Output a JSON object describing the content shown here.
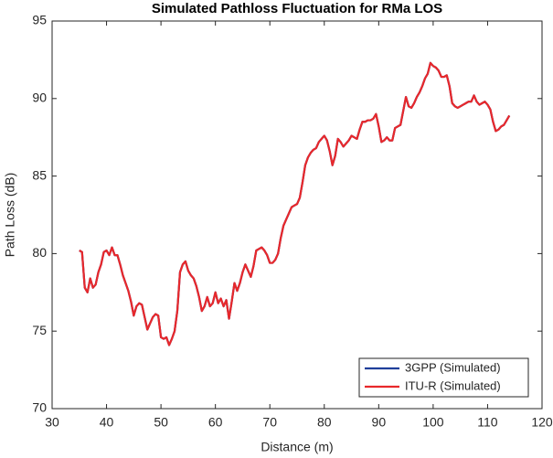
{
  "chart_data": {
    "type": "line",
    "title": "Simulated Pathloss Fluctuation for RMa LOS",
    "x_label": "Distance (m)",
    "y_label": "Path Loss (dB)",
    "xlim": [
      30,
      120
    ],
    "xticks": [
      30,
      40,
      50,
      60,
      70,
      80,
      90,
      100,
      110,
      120
    ],
    "ylim": [
      70,
      95
    ],
    "yticks": [
      70,
      75,
      80,
      85,
      90,
      95
    ],
    "legend": "lower right",
    "grid": false,
    "x": [
      35,
      35.5,
      36,
      36.5,
      37,
      37.5,
      38,
      38.5,
      39,
      39.5,
      40,
      40.5,
      41,
      41.5,
      42,
      42.5,
      43,
      44,
      44.5,
      45,
      45.5,
      46,
      46.5,
      47,
      47.5,
      48,
      48.5,
      49,
      49.5,
      50,
      50.5,
      51,
      51.5,
      52,
      52.5,
      53,
      53.5,
      54,
      54.5,
      55,
      55.5,
      56,
      56.5,
      57,
      57.5,
      58,
      58.5,
      59,
      59.5,
      60,
      60.5,
      61,
      61.5,
      62,
      62.5,
      63,
      63.5,
      64,
      64.5,
      65,
      65.5,
      66,
      66.5,
      67,
      67.5,
      68,
      68.5,
      69,
      69.5,
      70,
      70.5,
      71,
      71.5,
      72,
      72.5,
      73,
      73.5,
      74,
      74.5,
      75,
      75.5,
      76,
      76.5,
      77,
      77.5,
      78,
      78.5,
      79,
      79.5,
      80,
      80.5,
      81,
      81.5,
      82,
      82.5,
      83,
      83.5,
      84,
      84.5,
      85,
      85.5,
      86,
      86.5,
      87,
      87.5,
      88,
      88.5,
      89,
      89.5,
      90,
      90.5,
      91,
      91.5,
      92,
      92.5,
      93,
      93.5,
      94,
      94.5,
      95,
      95.5,
      96,
      96.5,
      97,
      97.5,
      98,
      98.5,
      99,
      99.5,
      100,
      100.5,
      101,
      101.5,
      102,
      102.5,
      103,
      103.5,
      104,
      104.5,
      105,
      105.5,
      106,
      106.5,
      107,
      107.5,
      108,
      108.5,
      109,
      109.5,
      110,
      110.5,
      111,
      111.5,
      112,
      112.5,
      113,
      113.5,
      114
    ],
    "series": [
      {
        "name": "3GPP (Simulated)",
        "color": "#1f3f9a",
        "values": [
          80.2,
          80.1,
          77.8,
          77.5,
          78.4,
          77.8,
          78.0,
          78.8,
          79.3,
          80.1,
          80.2,
          79.9,
          80.4,
          79.9,
          79.9,
          79.3,
          78.6,
          77.6,
          76.9,
          76.0,
          76.6,
          76.8,
          76.7,
          75.9,
          75.1,
          75.5,
          75.9,
          76.1,
          76.0,
          74.6,
          74.5,
          74.6,
          74.1,
          74.5,
          75.0,
          76.3,
          78.8,
          79.3,
          79.5,
          78.9,
          78.6,
          78.4,
          77.9,
          77.2,
          76.3,
          76.6,
          77.2,
          76.6,
          76.8,
          77.5,
          76.8,
          77.1,
          76.6,
          77.0,
          75.8,
          76.9,
          78.1,
          77.6,
          78.1,
          78.8,
          79.3,
          78.9,
          78.5,
          79.2,
          80.2,
          80.3,
          80.4,
          80.2,
          79.9,
          79.4,
          79.4,
          79.6,
          80.0,
          81.0,
          81.8,
          82.2,
          82.6,
          83.0,
          83.1,
          83.2,
          83.6,
          84.6,
          85.7,
          86.2,
          86.5,
          86.7,
          86.8,
          87.2,
          87.4,
          87.6,
          87.3,
          86.6,
          85.7,
          86.3,
          87.4,
          87.2,
          86.9,
          87.1,
          87.3,
          87.6,
          87.5,
          87.4,
          88.0,
          88.5,
          88.5,
          88.6,
          88.6,
          88.7,
          89.0,
          88.2,
          87.2,
          87.3,
          87.5,
          87.3,
          87.3,
          88.1,
          88.2,
          88.3,
          89.2,
          90.1,
          89.5,
          89.4,
          89.7,
          90.1,
          90.4,
          90.8,
          91.3,
          91.6,
          92.3,
          92.1,
          92.0,
          91.8,
          91.4,
          91.4,
          91.5,
          90.8,
          89.7,
          89.5,
          89.4,
          89.5,
          89.6,
          89.7,
          89.8,
          89.8,
          90.2,
          89.8,
          89.6,
          89.7,
          89.8,
          89.6,
          89.3,
          88.5,
          87.9,
          88.0,
          88.2,
          88.3,
          88.6,
          88.9
        ]
      },
      {
        "name": "ITU-R (Simulated)",
        "color": "#e8282b",
        "values": [
          80.2,
          80.1,
          77.8,
          77.5,
          78.4,
          77.8,
          78.0,
          78.8,
          79.3,
          80.1,
          80.2,
          79.9,
          80.4,
          79.9,
          79.9,
          79.3,
          78.6,
          77.6,
          76.9,
          76.0,
          76.6,
          76.8,
          76.7,
          75.9,
          75.1,
          75.5,
          75.9,
          76.1,
          76.0,
          74.6,
          74.5,
          74.6,
          74.1,
          74.5,
          75.0,
          76.3,
          78.8,
          79.3,
          79.5,
          78.9,
          78.6,
          78.4,
          77.9,
          77.2,
          76.3,
          76.6,
          77.2,
          76.6,
          76.8,
          77.5,
          76.8,
          77.1,
          76.6,
          77.0,
          75.8,
          76.9,
          78.1,
          77.6,
          78.1,
          78.8,
          79.3,
          78.9,
          78.5,
          79.2,
          80.2,
          80.3,
          80.4,
          80.2,
          79.9,
          79.4,
          79.4,
          79.6,
          80.0,
          81.0,
          81.8,
          82.2,
          82.6,
          83.0,
          83.1,
          83.2,
          83.6,
          84.6,
          85.7,
          86.2,
          86.5,
          86.7,
          86.8,
          87.2,
          87.4,
          87.6,
          87.3,
          86.6,
          85.7,
          86.3,
          87.4,
          87.2,
          86.9,
          87.1,
          87.3,
          87.6,
          87.5,
          87.4,
          88.0,
          88.5,
          88.5,
          88.6,
          88.6,
          88.7,
          89.0,
          88.2,
          87.2,
          87.3,
          87.5,
          87.3,
          87.3,
          88.1,
          88.2,
          88.3,
          89.2,
          90.1,
          89.5,
          89.4,
          89.7,
          90.1,
          90.4,
          90.8,
          91.3,
          91.6,
          92.3,
          92.1,
          92.0,
          91.8,
          91.4,
          91.4,
          91.5,
          90.8,
          89.7,
          89.5,
          89.4,
          89.5,
          89.6,
          89.7,
          89.8,
          89.8,
          90.2,
          89.8,
          89.6,
          89.7,
          89.8,
          89.6,
          89.3,
          88.5,
          87.9,
          88.0,
          88.2,
          88.3,
          88.6,
          88.9
        ]
      }
    ]
  }
}
